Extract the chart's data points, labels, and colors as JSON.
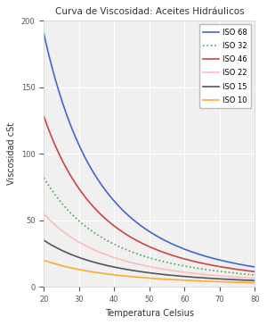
{
  "title": "Curva de Viscosidad: Aceites Hidráulicos",
  "xlabel": "Temperatura Celsius",
  "ylabel": "Viscosidad cSt",
  "xlim": [
    20,
    80
  ],
  "ylim": [
    0,
    200
  ],
  "xticks": [
    20,
    30,
    40,
    50,
    60,
    70,
    80
  ],
  "yticks": [
    0,
    50,
    100,
    150,
    200
  ],
  "background_color": "#ffffff",
  "axes_facecolor": "#f0f0f0",
  "grid_color": "#ffffff",
  "series": [
    {
      "label": "ISO 68",
      "color": "#4466cc",
      "linestyle": "-",
      "linewidth": 1.2,
      "nu20": 190,
      "nu80": 15
    },
    {
      "label": "ISO 32",
      "color": "#44aa44",
      "linestyle": ":",
      "linewidth": 1.2,
      "nu20": 82,
      "nu80": 9
    },
    {
      "label": "ISO 46",
      "color": "#cc4444",
      "linestyle": "-",
      "linewidth": 1.2,
      "nu20": 128,
      "nu80": 11.5
    },
    {
      "label": "ISO 22",
      "color": "#ffbbbb",
      "linestyle": "-",
      "linewidth": 1.2,
      "nu20": 55,
      "nu80": 6.5
    },
    {
      "label": "ISO 15",
      "color": "#555555",
      "linestyle": "-",
      "linewidth": 1.2,
      "nu20": 35,
      "nu80": 4.8
    },
    {
      "label": "ISO 10",
      "color": "#ffaa33",
      "linestyle": "-",
      "linewidth": 1.2,
      "nu20": 20,
      "nu80": 3.2
    }
  ]
}
